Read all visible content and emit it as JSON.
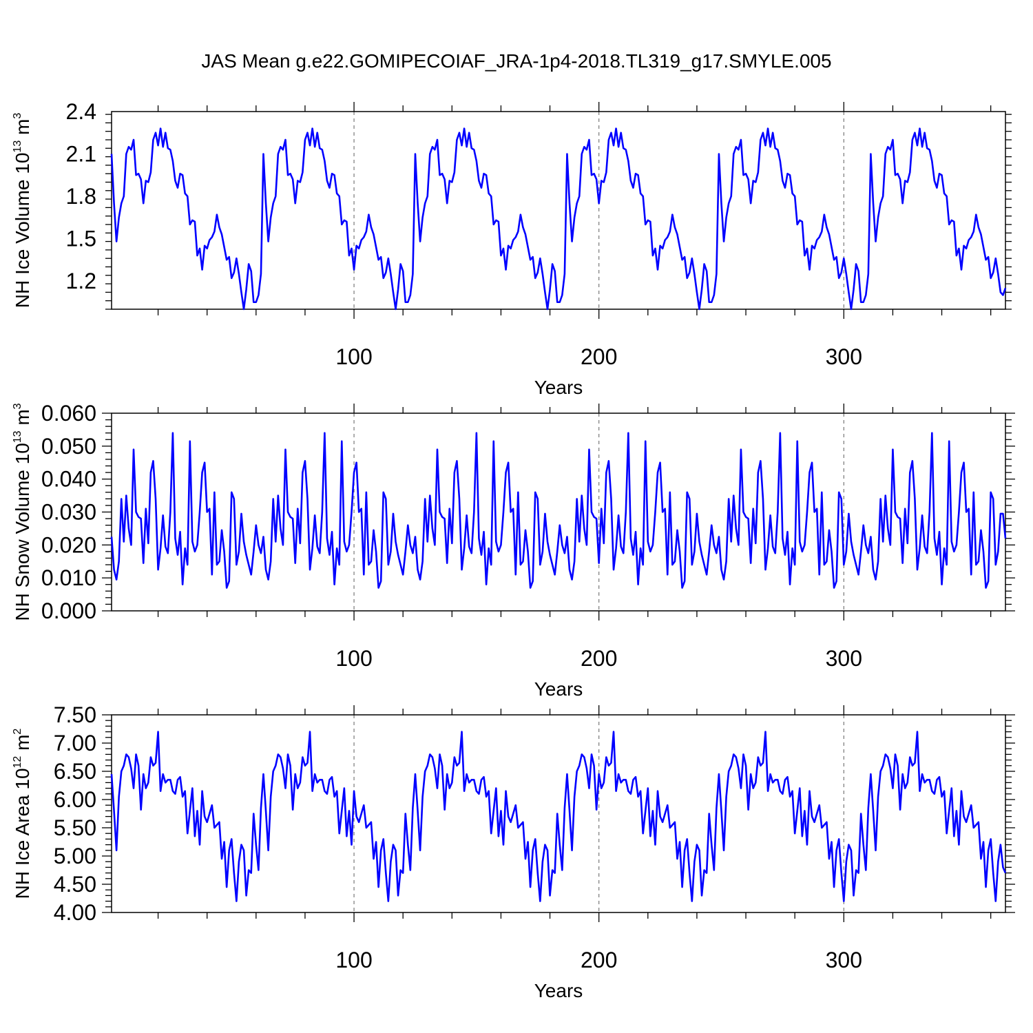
{
  "figure_title": "JAS Mean g.e22.GOMIPECOIAF_JRA-1p4-2018.TL319_g17.SMYLE.005",
  "colors": {
    "line": "#0000ff",
    "axis": "#000000",
    "grid": "#777777"
  },
  "chart_data": [
    {
      "type": "line",
      "name": "ice-volume",
      "xlabel": "Years",
      "ylabel": "NH Ice Volume 10",
      "ylabel_exponent": "13",
      "ylabel_unit": "m",
      "ylabel_unit_exponent": "3",
      "xlim": [
        1,
        366
      ],
      "ylim": [
        1.0,
        2.4
      ],
      "xticks": [
        100,
        200,
        300
      ],
      "xtick_labels": [
        "100",
        "200",
        "300"
      ],
      "yticks": [
        1.2,
        1.5,
        1.8,
        2.1,
        2.4
      ],
      "ytick_labels": [
        "1.2",
        "1.5",
        "1.8",
        "2.1",
        "2.4"
      ],
      "grid_x": [
        100,
        200,
        300
      ],
      "period": 62,
      "pattern": [
        2.1,
        1.75,
        1.48,
        1.65,
        1.75,
        1.8,
        2.1,
        2.15,
        2.13,
        2.2,
        1.95,
        1.96,
        1.92,
        1.75,
        1.91,
        1.9,
        1.97,
        2.2,
        2.25,
        2.16,
        2.28,
        2.15,
        2.25,
        2.14,
        2.13,
        2.05,
        1.91,
        1.86,
        1.96,
        1.95,
        1.82,
        1.8,
        1.6,
        1.63,
        1.62,
        1.38,
        1.43,
        1.28,
        1.45,
        1.43,
        1.49,
        1.51,
        1.55,
        1.67,
        1.58,
        1.53,
        1.44,
        1.35,
        1.37,
        1.22,
        1.26,
        1.36,
        1.25,
        1.12,
        1.0,
        1.14,
        1.32,
        1.27,
        1.05,
        1.05,
        1.1,
        1.25
      ],
      "last_values": [
        1.1,
        1.15
      ],
      "first_values": [
        2.1,
        1.75
      ],
      "series": [
        {
          "name": "NH Ice Volume",
          "color": "#0000ff"
        }
      ]
    },
    {
      "type": "line",
      "name": "snow-volume",
      "xlabel": "Years",
      "ylabel": "NH Snow Volume 10",
      "ylabel_exponent": "13",
      "ylabel_unit": "m",
      "ylabel_unit_exponent": "3",
      "xlim": [
        1,
        366
      ],
      "ylim": [
        0.0,
        0.06
      ],
      "xticks": [
        100,
        200,
        300
      ],
      "xtick_labels": [
        "100",
        "200",
        "300"
      ],
      "yticks": [
        0.0,
        0.01,
        0.02,
        0.03,
        0.04,
        0.05,
        0.06
      ],
      "ytick_labels": [
        "0.000",
        "0.010",
        "0.020",
        "0.030",
        "0.040",
        "0.050",
        "0.060"
      ],
      "grid_x": [
        100,
        200,
        300
      ],
      "period": 62,
      "pattern": [
        0.0225,
        0.0125,
        0.0095,
        0.015,
        0.034,
        0.021,
        0.035,
        0.025,
        0.02,
        0.049,
        0.03,
        0.0285,
        0.028,
        0.0145,
        0.031,
        0.0205,
        0.042,
        0.0455,
        0.034,
        0.0125,
        0.019,
        0.029,
        0.0195,
        0.0175,
        0.03,
        0.054,
        0.022,
        0.017,
        0.024,
        0.008,
        0.019,
        0.014,
        0.0515,
        0.021,
        0.018,
        0.02,
        0.03,
        0.042,
        0.045,
        0.03,
        0.031,
        0.011,
        0.036,
        0.014,
        0.015,
        0.0245,
        0.018,
        0.007,
        0.009,
        0.036,
        0.034,
        0.014,
        0.018,
        0.0295,
        0.021,
        0.017,
        0.014,
        0.011,
        0.018,
        0.026,
        0.02,
        0.0175
      ],
      "first_values": [
        0.0225,
        0.0125
      ],
      "last_values": [
        0.0295,
        0.022
      ],
      "series": [
        {
          "name": "NH Snow Volume",
          "color": "#0000ff"
        }
      ]
    },
    {
      "type": "line",
      "name": "ice-area",
      "xlabel": "Years",
      "ylabel": "NH Ice Area 10",
      "ylabel_exponent": "12",
      "ylabel_unit": "m",
      "ylabel_unit_exponent": "2",
      "xlim": [
        1,
        366
      ],
      "ylim": [
        4.0,
        7.5
      ],
      "xticks": [
        100,
        200,
        300
      ],
      "xtick_labels": [
        "100",
        "200",
        "300"
      ],
      "yticks": [
        4.0,
        4.5,
        5.0,
        5.5,
        6.0,
        6.5,
        7.0,
        7.5
      ],
      "ytick_labels": [
        "4.00",
        "4.50",
        "5.00",
        "5.50",
        "6.00",
        "6.50",
        "7.00",
        "7.50"
      ],
      "grid_x": [
        100,
        200,
        300
      ],
      "period": 62,
      "pattern": [
        6.45,
        5.8,
        5.1,
        6.05,
        6.5,
        6.6,
        6.8,
        6.75,
        6.55,
        6.2,
        6.8,
        6.6,
        5.82,
        6.45,
        6.2,
        6.3,
        6.75,
        6.6,
        6.65,
        7.2,
        6.15,
        6.45,
        6.3,
        6.35,
        6.35,
        6.15,
        6.1,
        6.35,
        6.4,
        6.05,
        6.15,
        5.4,
        5.8,
        6.2,
        5.35,
        5.8,
        5.2,
        6.15,
        5.7,
        5.6,
        5.75,
        5.9,
        5.5,
        5.55,
        5.6,
        4.95,
        5.25,
        4.45,
        5.1,
        5.3,
        4.7,
        4.2,
        4.9,
        5.2,
        5.1,
        4.3,
        4.75,
        4.7,
        5.75,
        5.2,
        4.75,
        5.85
      ],
      "first_values": [
        6.45,
        5.8
      ],
      "last_values": [
        4.8,
        4.7
      ],
      "series": [
        {
          "name": "NH Ice Area",
          "color": "#0000ff"
        }
      ]
    }
  ]
}
